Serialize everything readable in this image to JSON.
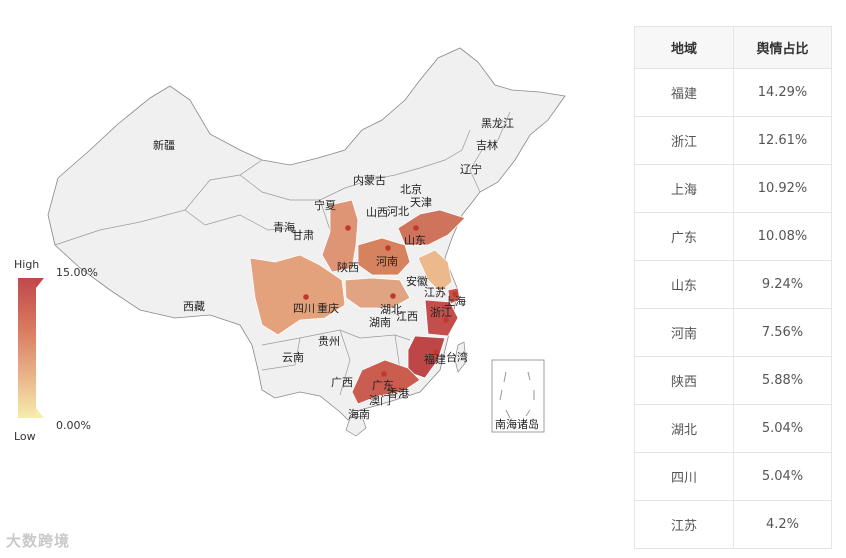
{
  "legend": {
    "high_label": "High",
    "high_value": "15.00%",
    "low_label": "Low",
    "low_value": "0.00%"
  },
  "watermark": "大数跨境",
  "provinces": {
    "xinjiang": "新疆",
    "xizang": "西藏",
    "qinghai": "青海",
    "gansu": "甘肃",
    "neimenggu": "内蒙古",
    "heilongjiang": "黑龙江",
    "jilin": "吉林",
    "liaoning": "辽宁",
    "beijing": "北京",
    "tianjin": "天津",
    "hebei": "河北",
    "shanxi": "山西",
    "ningxia": "宁夏",
    "shaanxi": "陕西",
    "shandong": "山东",
    "henan": "河南",
    "jiangsu": "江苏",
    "anhui": "安徽",
    "shanghai": "上海",
    "sichuan": "四川",
    "chongqing": "重庆",
    "hubei": "湖北",
    "zhejiang": "浙江",
    "hunan": "湖南",
    "jiangxi": "江西",
    "guizhou": "贵州",
    "yunnan": "云南",
    "fujian": "福建",
    "taiwan": "台湾",
    "guangxi": "广西",
    "guangdong": "广东",
    "hongkong": "香港",
    "macau": "澳门",
    "hainan": "海南",
    "nanhai": "南海诸岛"
  },
  "colors": {
    "base": "#f0f0f0",
    "border": "#888888",
    "high": "#c0484c",
    "low": "#f6ecac",
    "marker": "#c0392b"
  },
  "table": {
    "headers": [
      "地域",
      "舆情占比"
    ],
    "rows": [
      {
        "region": "福建",
        "share": "14.29%"
      },
      {
        "region": "浙江",
        "share": "12.61%"
      },
      {
        "region": "上海",
        "share": "10.92%"
      },
      {
        "region": "广东",
        "share": "10.08%"
      },
      {
        "region": "山东",
        "share": "9.24%"
      },
      {
        "region": "河南",
        "share": "7.56%"
      },
      {
        "region": "陕西",
        "share": "5.88%"
      },
      {
        "region": "湖北",
        "share": "5.04%"
      },
      {
        "region": "四川",
        "share": "5.04%"
      },
      {
        "region": "江苏",
        "share": "4.2%"
      }
    ]
  }
}
